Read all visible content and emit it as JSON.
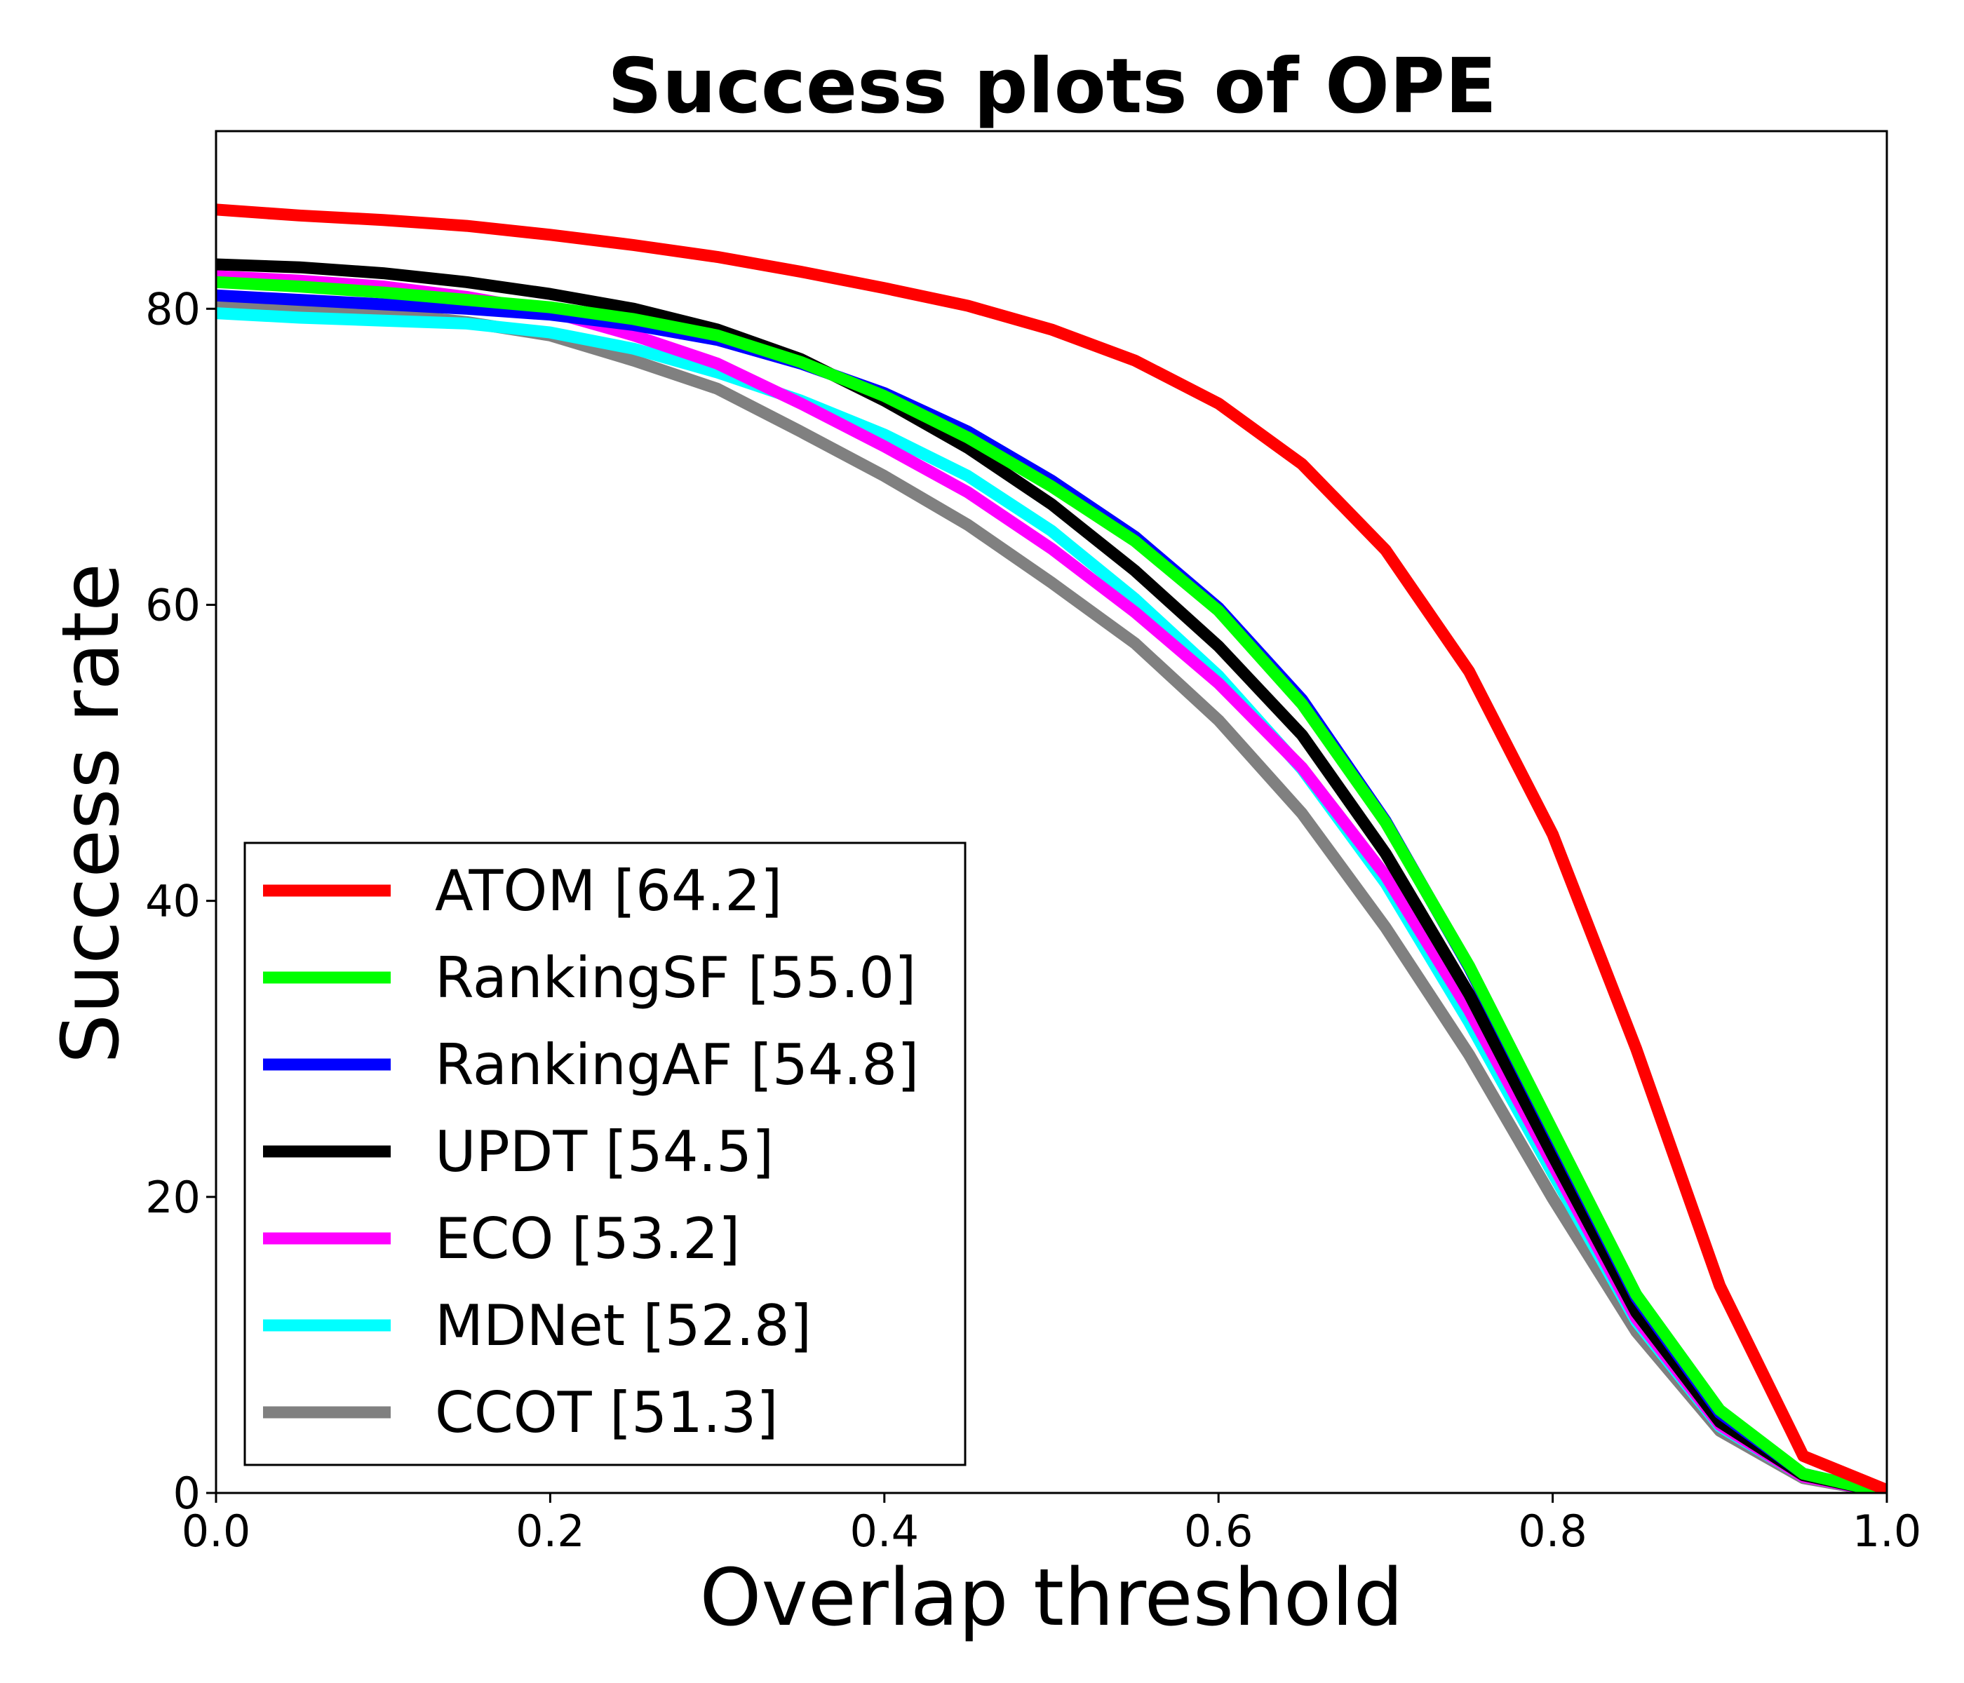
{
  "chart_data": {
    "type": "line",
    "title": "Success plots of OPE",
    "xlabel": "Overlap threshold",
    "ylabel": "Success rate",
    "xlim": [
      0.0,
      1.0
    ],
    "ylim": [
      0,
      92
    ],
    "xticks": [
      "0.0",
      "0.2",
      "0.4",
      "0.6",
      "0.8",
      "1.0"
    ],
    "yticks": [
      "0",
      "20",
      "40",
      "60",
      "80"
    ],
    "grid": false,
    "legend_position": "lower-left",
    "x": [
      0.0,
      0.05,
      0.1,
      0.15,
      0.2,
      0.25,
      0.3,
      0.35,
      0.4,
      0.45,
      0.5,
      0.55,
      0.6,
      0.65,
      0.7,
      0.75,
      0.8,
      0.85,
      0.9,
      0.95,
      1.0
    ],
    "series": [
      {
        "name": "ATOM [64.2]",
        "color": "#ff0000",
        "values": [
          86.7,
          86.3,
          86.0,
          85.6,
          85.0,
          84.3,
          83.5,
          82.5,
          81.4,
          80.2,
          78.6,
          76.5,
          73.6,
          69.5,
          63.7,
          55.5,
          44.5,
          30.0,
          14.0,
          2.5,
          0.2
        ]
      },
      {
        "name": "RankingSF [55.0]",
        "color": "#00ff00",
        "values": [
          81.8,
          81.5,
          81.1,
          80.6,
          80.1,
          79.3,
          78.2,
          76.4,
          74.1,
          71.3,
          68.0,
          64.3,
          59.6,
          53.3,
          45.3,
          35.6,
          24.5,
          13.4,
          5.6,
          1.3,
          0.0
        ]
      },
      {
        "name": "RankingAF [54.8]",
        "color": "#0000ff",
        "values": [
          80.9,
          80.6,
          80.3,
          80.0,
          79.6,
          78.9,
          77.9,
          76.3,
          74.3,
          71.7,
          68.4,
          64.6,
          59.8,
          53.6,
          45.4,
          35.5,
          24.3,
          13.2,
          5.4,
          1.3,
          0.0
        ]
      },
      {
        "name": "UPDT [54.5]",
        "color": "#000000",
        "values": [
          83.0,
          82.8,
          82.4,
          81.8,
          81.0,
          80.0,
          78.6,
          76.6,
          73.8,
          70.6,
          66.8,
          62.3,
          57.2,
          51.2,
          43.2,
          33.7,
          22.8,
          12.2,
          4.8,
          1.2,
          0.0
        ]
      },
      {
        "name": "ECO [53.2]",
        "color": "#ff00ff",
        "values": [
          82.2,
          81.9,
          81.5,
          80.8,
          79.8,
          78.2,
          76.3,
          73.6,
          70.7,
          67.6,
          63.8,
          59.5,
          54.7,
          49.0,
          41.7,
          32.6,
          22.2,
          11.8,
          4.6,
          1.1,
          0.0
        ]
      },
      {
        "name": "MDNet [52.8]",
        "color": "#00ffff",
        "values": [
          79.7,
          79.4,
          79.2,
          79.0,
          78.4,
          77.3,
          75.7,
          73.8,
          71.5,
          68.7,
          65.0,
          60.4,
          55.2,
          48.9,
          41.2,
          31.8,
          21.6,
          11.6,
          4.5,
          1.1,
          0.0
        ]
      },
      {
        "name": "CCOT [51.3]",
        "color": "#808080",
        "values": [
          80.3,
          80.1,
          79.7,
          79.1,
          78.2,
          76.5,
          74.6,
          71.7,
          68.7,
          65.4,
          61.5,
          57.4,
          52.2,
          45.9,
          38.2,
          29.6,
          19.9,
          10.9,
          4.2,
          1.0,
          0.0
        ]
      }
    ]
  }
}
